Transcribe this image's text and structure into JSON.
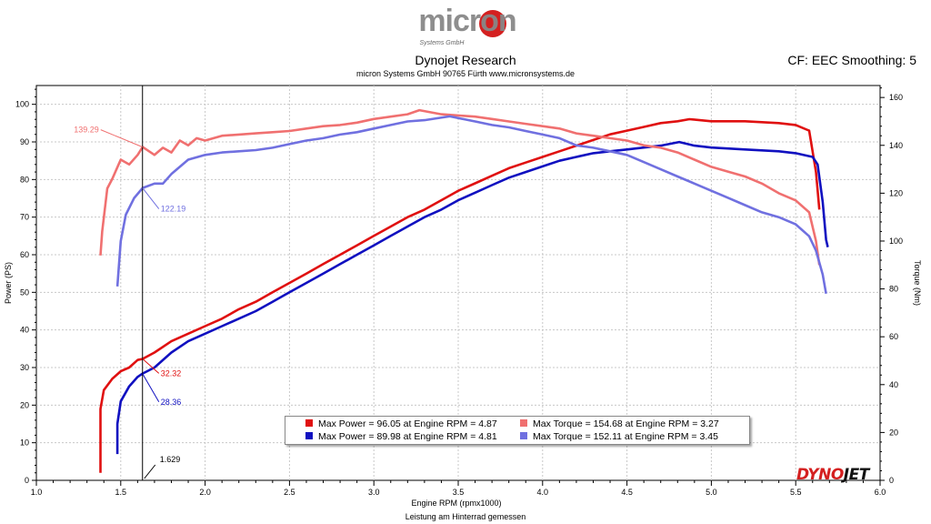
{
  "header": {
    "logo_text": "micron",
    "logo_subtext": "Systems GmbH",
    "title": "Dynojet Research",
    "subtitle": "micron Systems GmbH  90765 Fürth www.micronsystems.de",
    "cf_smoothing": "CF: EEC Smoothing: 5"
  },
  "footer": {
    "text": "Leistung am Hinterrad gemessen"
  },
  "brand_logo": {
    "part1": "DYNO",
    "part2": "JET"
  },
  "colors": {
    "power_red": "#e01010",
    "power_blue": "#1010c0",
    "torque_red": "#f07070",
    "torque_blue": "#7070e0"
  },
  "chart_data": {
    "type": "line",
    "xlabel": "Engine RPM (rpmx1000)",
    "ylabel": "Power (PS)",
    "y2label": "Torque (Nm)",
    "xlim": [
      1.0,
      6.0
    ],
    "ylim": [
      0,
      105
    ],
    "y2lim": [
      0,
      165
    ],
    "xticks": [
      "1.0",
      "1.5",
      "2.0",
      "2.5",
      "3.0",
      "3.5",
      "4.0",
      "4.5",
      "5.0",
      "5.5",
      "6.0"
    ],
    "yticks": [
      "0",
      "10",
      "20",
      "30",
      "40",
      "50",
      "60",
      "70",
      "80",
      "90",
      "100"
    ],
    "y2ticks": [
      "0",
      "20",
      "40",
      "60",
      "80",
      "100",
      "120",
      "140",
      "160"
    ],
    "grid": true,
    "cursor": {
      "x": 1.629,
      "label": "1.629"
    },
    "annotations": [
      {
        "text": "139.29",
        "series": "torque_red",
        "x": 1.629,
        "value": 139.29
      },
      {
        "text": "122.19",
        "series": "torque_blue",
        "x": 1.629,
        "value": 122.19
      },
      {
        "text": "32.32",
        "series": "power_red",
        "x": 1.629,
        "value": 32.32
      },
      {
        "text": "28.36",
        "series": "power_blue",
        "x": 1.629,
        "value": 28.36
      }
    ],
    "legend": [
      {
        "key": "power_red",
        "text": "Max Power = 96.05 at Engine RPM = 4.87"
      },
      {
        "key": "torque_red",
        "text": "Max Torque = 154.68 at Engine RPM = 3.27"
      },
      {
        "key": "power_blue",
        "text": "Max Power = 89.98 at Engine RPM = 4.81"
      },
      {
        "key": "torque_blue",
        "text": "Max Torque = 152.11 at Engine RPM = 3.45"
      }
    ],
    "series": [
      {
        "key": "power_red",
        "axis": "left",
        "points": [
          [
            1.38,
            2
          ],
          [
            1.38,
            19
          ],
          [
            1.4,
            24
          ],
          [
            1.45,
            27
          ],
          [
            1.5,
            29
          ],
          [
            1.55,
            30
          ],
          [
            1.6,
            32
          ],
          [
            1.63,
            32.3
          ],
          [
            1.7,
            34
          ],
          [
            1.8,
            37
          ],
          [
            1.9,
            39
          ],
          [
            2.0,
            41
          ],
          [
            2.1,
            43
          ],
          [
            2.2,
            45.5
          ],
          [
            2.3,
            47.5
          ],
          [
            2.4,
            50
          ],
          [
            2.5,
            52.5
          ],
          [
            2.6,
            55
          ],
          [
            2.7,
            57.5
          ],
          [
            2.8,
            60
          ],
          [
            2.9,
            62.5
          ],
          [
            3.0,
            65
          ],
          [
            3.1,
            67.5
          ],
          [
            3.2,
            70
          ],
          [
            3.3,
            72
          ],
          [
            3.4,
            74.5
          ],
          [
            3.5,
            77
          ],
          [
            3.6,
            79
          ],
          [
            3.7,
            81
          ],
          [
            3.8,
            83
          ],
          [
            3.9,
            84.5
          ],
          [
            4.0,
            86
          ],
          [
            4.1,
            87.5
          ],
          [
            4.2,
            89
          ],
          [
            4.3,
            90.5
          ],
          [
            4.4,
            92
          ],
          [
            4.5,
            93
          ],
          [
            4.6,
            94
          ],
          [
            4.7,
            95
          ],
          [
            4.8,
            95.5
          ],
          [
            4.87,
            96.05
          ],
          [
            5.0,
            95.5
          ],
          [
            5.2,
            95.5
          ],
          [
            5.4,
            95
          ],
          [
            5.5,
            94.5
          ],
          [
            5.58,
            93
          ],
          [
            5.62,
            82
          ],
          [
            5.64,
            72
          ]
        ]
      },
      {
        "key": "power_blue",
        "axis": "left",
        "points": [
          [
            1.48,
            7
          ],
          [
            1.48,
            15
          ],
          [
            1.5,
            21
          ],
          [
            1.55,
            25
          ],
          [
            1.6,
            27.5
          ],
          [
            1.63,
            28.4
          ],
          [
            1.7,
            30
          ],
          [
            1.8,
            34
          ],
          [
            1.9,
            37
          ],
          [
            2.0,
            39
          ],
          [
            2.1,
            41
          ],
          [
            2.2,
            43
          ],
          [
            2.3,
            45
          ],
          [
            2.4,
            47.5
          ],
          [
            2.5,
            50
          ],
          [
            2.6,
            52.5
          ],
          [
            2.7,
            55
          ],
          [
            2.8,
            57.5
          ],
          [
            2.9,
            60
          ],
          [
            3.0,
            62.5
          ],
          [
            3.1,
            65
          ],
          [
            3.2,
            67.5
          ],
          [
            3.3,
            70
          ],
          [
            3.4,
            72
          ],
          [
            3.5,
            74.5
          ],
          [
            3.6,
            76.5
          ],
          [
            3.7,
            78.5
          ],
          [
            3.8,
            80.5
          ],
          [
            3.9,
            82
          ],
          [
            4.0,
            83.5
          ],
          [
            4.1,
            85
          ],
          [
            4.2,
            86
          ],
          [
            4.3,
            87
          ],
          [
            4.4,
            87.5
          ],
          [
            4.5,
            88
          ],
          [
            4.6,
            88.5
          ],
          [
            4.7,
            89
          ],
          [
            4.81,
            89.98
          ],
          [
            4.9,
            89
          ],
          [
            5.0,
            88.5
          ],
          [
            5.2,
            88
          ],
          [
            5.4,
            87.5
          ],
          [
            5.5,
            87
          ],
          [
            5.6,
            86
          ],
          [
            5.63,
            84
          ],
          [
            5.66,
            74
          ],
          [
            5.68,
            64
          ],
          [
            5.69,
            62
          ]
        ]
      },
      {
        "key": "torque_red",
        "axis": "right",
        "points": [
          [
            1.38,
            94
          ],
          [
            1.39,
            104
          ],
          [
            1.42,
            122
          ],
          [
            1.45,
            126
          ],
          [
            1.5,
            134
          ],
          [
            1.55,
            132
          ],
          [
            1.6,
            136
          ],
          [
            1.63,
            139.3
          ],
          [
            1.7,
            136
          ],
          [
            1.75,
            139
          ],
          [
            1.8,
            137
          ],
          [
            1.85,
            142
          ],
          [
            1.9,
            140
          ],
          [
            1.95,
            143
          ],
          [
            2.0,
            142
          ],
          [
            2.1,
            144
          ],
          [
            2.2,
            144.5
          ],
          [
            2.3,
            145
          ],
          [
            2.4,
            145.5
          ],
          [
            2.5,
            146
          ],
          [
            2.6,
            147
          ],
          [
            2.7,
            148
          ],
          [
            2.8,
            148.5
          ],
          [
            2.9,
            149.5
          ],
          [
            3.0,
            151
          ],
          [
            3.1,
            152
          ],
          [
            3.2,
            153
          ],
          [
            3.27,
            154.68
          ],
          [
            3.4,
            153
          ],
          [
            3.5,
            152.5
          ],
          [
            3.6,
            152
          ],
          [
            3.7,
            151
          ],
          [
            3.8,
            150
          ],
          [
            3.9,
            149
          ],
          [
            4.0,
            148
          ],
          [
            4.1,
            147
          ],
          [
            4.2,
            145
          ],
          [
            4.3,
            144
          ],
          [
            4.4,
            143
          ],
          [
            4.5,
            142
          ],
          [
            4.6,
            140
          ],
          [
            4.7,
            139
          ],
          [
            4.8,
            137
          ],
          [
            4.9,
            134
          ],
          [
            5.0,
            131
          ],
          [
            5.1,
            129
          ],
          [
            5.2,
            127
          ],
          [
            5.3,
            124
          ],
          [
            5.4,
            120
          ],
          [
            5.5,
            117
          ],
          [
            5.58,
            112
          ],
          [
            5.62,
            100
          ],
          [
            5.64,
            90
          ]
        ]
      },
      {
        "key": "torque_blue",
        "axis": "right",
        "points": [
          [
            1.48,
            81
          ],
          [
            1.5,
            100
          ],
          [
            1.53,
            111
          ],
          [
            1.58,
            118
          ],
          [
            1.63,
            122.2
          ],
          [
            1.7,
            124
          ],
          [
            1.75,
            124
          ],
          [
            1.8,
            128
          ],
          [
            1.9,
            134
          ],
          [
            2.0,
            136
          ],
          [
            2.1,
            137
          ],
          [
            2.2,
            137.5
          ],
          [
            2.3,
            138
          ],
          [
            2.4,
            139
          ],
          [
            2.5,
            140.5
          ],
          [
            2.6,
            142
          ],
          [
            2.7,
            143
          ],
          [
            2.8,
            144.5
          ],
          [
            2.9,
            145.5
          ],
          [
            3.0,
            147
          ],
          [
            3.1,
            148.5
          ],
          [
            3.2,
            150
          ],
          [
            3.3,
            150.5
          ],
          [
            3.45,
            152.11
          ],
          [
            3.6,
            150
          ],
          [
            3.7,
            148.5
          ],
          [
            3.8,
            147.5
          ],
          [
            3.9,
            146
          ],
          [
            4.0,
            144.5
          ],
          [
            4.1,
            143
          ],
          [
            4.2,
            140
          ],
          [
            4.3,
            139
          ],
          [
            4.4,
            137.5
          ],
          [
            4.5,
            136
          ],
          [
            4.6,
            133
          ],
          [
            4.7,
            130
          ],
          [
            4.8,
            127
          ],
          [
            4.9,
            124
          ],
          [
            5.0,
            121
          ],
          [
            5.1,
            118
          ],
          [
            5.2,
            115
          ],
          [
            5.3,
            112
          ],
          [
            5.4,
            110
          ],
          [
            5.5,
            107
          ],
          [
            5.58,
            102
          ],
          [
            5.62,
            96
          ],
          [
            5.66,
            86
          ],
          [
            5.68,
            78
          ]
        ]
      }
    ]
  }
}
